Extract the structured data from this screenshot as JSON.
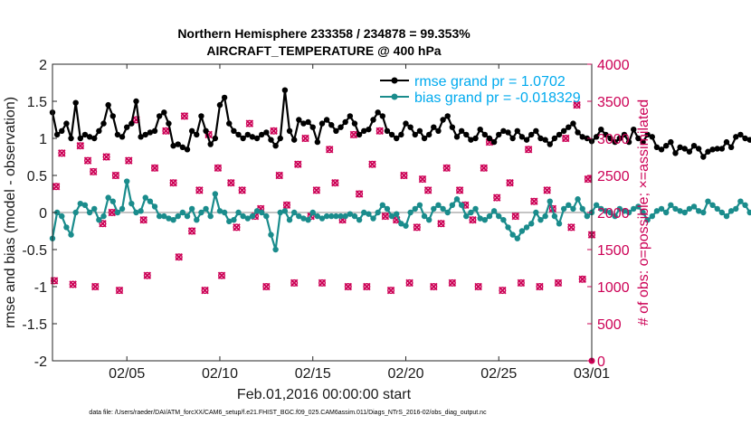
{
  "chart_data": {
    "type": "line",
    "title": "Northern Hemisphere 233358 / 234878 = 99.353%",
    "subtitle": "AIRCRAFT_TEMPERATURE @ 400 hPa",
    "xlabel": "Feb.01,2016 00:00:00 start",
    "ylabel": "rmse and bias (model - observation)",
    "ylabel_right": "# of obs: o=possible; ×=assimilated",
    "footer": "data file: /Users/raeder/DAI/ATM_forcXX/CAM6_setup/f.e21.FHIST_BGC.f09_025.CAM6assim.011/Diags_NTrS_2016-02/obs_diag_output.nc",
    "x_unit": "days since Feb.01,2016 00:00:00 (6-hourly samples)",
    "xlim": [
      1,
      30
    ],
    "ylim": [
      -2,
      2
    ],
    "ylim_right": [
      0,
      4000
    ],
    "grid": false,
    "legend_location": "top-right",
    "x_ticks": [
      5,
      10,
      15,
      20,
      25,
      30
    ],
    "x_tick_labels": [
      "02/05",
      "02/10",
      "02/15",
      "02/20",
      "02/25",
      "03/01"
    ],
    "y_ticks": [
      -2,
      -1.5,
      -1,
      -0.5,
      0,
      0.5,
      1,
      1.5,
      2
    ],
    "y_tick_labels": [
      "-2",
      "-1.5",
      "-1",
      "-0.5",
      "0",
      "0.5",
      "1",
      "1.5",
      "2"
    ],
    "y_ticks_right": [
      0,
      500,
      1000,
      1500,
      2000,
      2500,
      3000,
      3500,
      4000
    ],
    "y_tick_labels_right": [
      "0",
      "500",
      "1000",
      "1500",
      "2000",
      "2500",
      "3000",
      "3500",
      "4000"
    ],
    "colors": {
      "rmse": "#000000",
      "bias": "#1a8c8c",
      "obs": "#cc0055",
      "zero_line": "#b0b0b0",
      "legend_text": "#00aaee"
    },
    "series": [
      {
        "name": "rmse grand pr = 1.0702",
        "color": "#000000",
        "x_start": 1.0,
        "x_step": 0.25,
        "values": [
          1.35,
          1.05,
          1.1,
          1.2,
          1.0,
          1.48,
          1.0,
          1.05,
          1.02,
          1.0,
          1.1,
          1.2,
          1.45,
          1.3,
          1.05,
          1.02,
          1.15,
          1.2,
          1.5,
          1.02,
          1.05,
          1.08,
          1.1,
          1.3,
          1.35,
          1.2,
          0.9,
          0.92,
          0.88,
          0.85,
          1.1,
          1.05,
          1.3,
          1.1,
          0.92,
          1.0,
          1.45,
          1.55,
          1.2,
          1.1,
          1.05,
          1.0,
          1.05,
          1.02,
          1.0,
          1.05,
          1.08,
          0.98,
          0.9,
          1.0,
          1.65,
          1.1,
          0.98,
          1.25,
          1.2,
          1.22,
          1.15,
          0.95,
          1.2,
          1.25,
          1.18,
          1.1,
          1.15,
          1.22,
          1.3,
          1.2,
          1.05,
          1.1,
          1.12,
          1.25,
          1.35,
          1.3,
          1.1,
          1.05,
          1.0,
          1.05,
          1.2,
          1.15,
          1.05,
          1.1,
          1.0,
          1.05,
          1.15,
          1.1,
          1.25,
          1.3,
          1.15,
          1.02,
          1.1,
          1.05,
          0.98,
          1.0,
          1.12,
          1.05,
          1.0,
          0.95,
          1.05,
          1.1,
          1.08,
          1.0,
          1.1,
          1.02,
          0.98,
          1.05,
          1.1,
          1.0,
          0.98,
          0.92,
          1.0,
          1.05,
          1.1,
          1.15,
          1.2,
          1.08,
          1.02,
          1.0,
          0.96,
          1.02,
          1.12,
          1.05,
          1.0,
          0.95,
          1.0,
          1.05,
          0.95,
          1.12,
          1.0,
          0.95,
          1.05,
          1.02,
          0.88,
          0.85,
          0.9,
          0.95,
          0.8,
          0.88,
          0.86,
          0.82,
          0.9,
          0.86,
          0.75,
          0.82,
          0.85,
          0.86,
          0.86,
          0.95,
          0.88,
          1.02,
          1.05,
          1.0,
          0.98,
          1.05,
          1.0,
          0.84,
          0.82,
          0.8
        ]
      },
      {
        "name": "bias grand pr = -0.018329",
        "color": "#1a8c8c",
        "x_start": 1.0,
        "x_step": 0.25,
        "values": [
          -0.35,
          0.0,
          -0.05,
          -0.2,
          -0.3,
          0.0,
          0.12,
          0.1,
          0.0,
          0.05,
          -0.1,
          -0.05,
          0.2,
          0.15,
          0.0,
          0.05,
          0.42,
          0.12,
          0.0,
          0.02,
          0.2,
          0.15,
          0.08,
          -0.05,
          -0.05,
          -0.08,
          -0.1,
          -0.05,
          0.0,
          -0.05,
          0.05,
          -0.1,
          0.0,
          0.05,
          -0.05,
          0.25,
          0.02,
          0.0,
          -0.12,
          -0.1,
          0.0,
          -0.05,
          -0.08,
          -0.05,
          0.02,
          0.0,
          -0.05,
          -0.3,
          -0.5,
          0.0,
          0.02,
          -0.1,
          0.0,
          -0.05,
          -0.08,
          -0.1,
          0.0,
          -0.05,
          -0.08,
          -0.05,
          -0.05,
          -0.05,
          -0.05,
          -0.05,
          -0.02,
          -0.05,
          -0.1,
          0.0,
          -0.02,
          -0.08,
          0.0,
          0.1,
          0.05,
          -0.05,
          -0.02,
          -0.15,
          -0.18,
          0.0,
          0.05,
          0.1,
          -0.05,
          -0.1,
          0.05,
          0.1,
          0.05,
          0.0,
          0.1,
          0.18,
          0.1,
          -0.05,
          0.0,
          0.05,
          -0.08,
          -0.1,
          -0.05,
          0.02,
          -0.05,
          -0.1,
          -0.2,
          -0.3,
          -0.35,
          -0.25,
          -0.2,
          -0.15,
          0.0,
          -0.1,
          -0.05,
          0.15,
          -0.05,
          -0.15,
          0.05,
          0.1,
          0.05,
          0.18,
          0.05,
          -0.05,
          0.0,
          0.1,
          0.05,
          0.02,
          0.0,
          -0.05,
          0.05,
          0.02,
          0.0,
          0.05,
          0.08,
          0.0,
          -0.1,
          -0.05,
          0.02,
          0.05,
          0.0,
          0.1,
          0.05,
          0.02,
          0.0,
          0.05,
          0.08,
          0.02,
          0.0,
          0.15,
          0.1,
          0.05,
          0.0,
          -0.05,
          0.02,
          0.05,
          0.15,
          0.1,
          0.0,
          -0.05,
          0.0,
          0.05,
          0.1
        ]
      },
      {
        "name": "possible",
        "color": "#cc0055",
        "marker": "o",
        "points": [
          [
            1.1,
            1080
          ],
          [
            1.2,
            2350
          ],
          [
            1.5,
            2800
          ],
          [
            2.1,
            1030
          ],
          [
            2.5,
            2900
          ],
          [
            2.9,
            2700
          ],
          [
            3.2,
            2550
          ],
          [
            3.3,
            1000
          ],
          [
            3.7,
            1850
          ],
          [
            3.9,
            2750
          ],
          [
            4.2,
            2000
          ],
          [
            4.4,
            2500
          ],
          [
            4.6,
            950
          ],
          [
            5.1,
            2700
          ],
          [
            5.5,
            3250
          ],
          [
            5.9,
            1900
          ],
          [
            6.1,
            1150
          ],
          [
            6.5,
            2600
          ],
          [
            7.1,
            3100
          ],
          [
            7.5,
            2400
          ],
          [
            7.8,
            1400
          ],
          [
            8.1,
            3300
          ],
          [
            8.5,
            1750
          ],
          [
            8.9,
            2300
          ],
          [
            9.2,
            950
          ],
          [
            9.4,
            3050
          ],
          [
            9.9,
            2600
          ],
          [
            10.1,
            1150
          ],
          [
            10.6,
            2400
          ],
          [
            10.9,
            1800
          ],
          [
            11.2,
            2300
          ],
          [
            11.6,
            3200
          ],
          [
            11.9,
            1950
          ],
          [
            12.2,
            2050
          ],
          [
            12.5,
            1000
          ],
          [
            12.9,
            3100
          ],
          [
            13.2,
            2500
          ],
          [
            13.6,
            2100
          ],
          [
            14.0,
            1050
          ],
          [
            14.2,
            2650
          ],
          [
            14.6,
            3000
          ],
          [
            14.9,
            1950
          ],
          [
            15.2,
            2300
          ],
          [
            15.5,
            1050
          ],
          [
            15.9,
            2850
          ],
          [
            16.2,
            2400
          ],
          [
            16.6,
            1900
          ],
          [
            16.9,
            1000
          ],
          [
            17.2,
            3050
          ],
          [
            17.5,
            2250
          ],
          [
            17.9,
            1000
          ],
          [
            18.2,
            2650
          ],
          [
            18.6,
            3100
          ],
          [
            18.9,
            1950
          ],
          [
            19.2,
            950
          ],
          [
            19.5,
            1900
          ],
          [
            19.9,
            2500
          ],
          [
            20.2,
            1050
          ],
          [
            20.6,
            1800
          ],
          [
            20.9,
            2450
          ],
          [
            21.2,
            2300
          ],
          [
            21.5,
            1000
          ],
          [
            21.9,
            1850
          ],
          [
            22.2,
            2600
          ],
          [
            22.5,
            1050
          ],
          [
            22.9,
            2300
          ],
          [
            23.2,
            2100
          ],
          [
            23.6,
            1900
          ],
          [
            23.9,
            1000
          ],
          [
            24.2,
            2600
          ],
          [
            24.5,
            2950
          ],
          [
            24.9,
            2200
          ],
          [
            25.2,
            950
          ],
          [
            25.6,
            2400
          ],
          [
            25.9,
            1950
          ],
          [
            26.2,
            1050
          ],
          [
            26.6,
            2850
          ],
          [
            26.9,
            2150
          ],
          [
            27.2,
            1000
          ],
          [
            27.6,
            2300
          ],
          [
            27.9,
            2050
          ],
          [
            28.2,
            1050
          ],
          [
            28.6,
            3000
          ],
          [
            28.9,
            1800
          ],
          [
            29.2,
            3450
          ],
          [
            29.5,
            1100
          ],
          [
            29.8,
            2450
          ],
          [
            30.0,
            1700
          ]
        ]
      },
      {
        "name": "assimilated",
        "color": "#cc0055",
        "marker": "x",
        "points": [
          [
            1.1,
            1080
          ],
          [
            1.2,
            2350
          ],
          [
            1.5,
            2800
          ],
          [
            2.1,
            1030
          ],
          [
            2.5,
            2900
          ],
          [
            2.9,
            2700
          ],
          [
            3.2,
            2550
          ],
          [
            3.3,
            1000
          ],
          [
            3.7,
            1850
          ],
          [
            3.9,
            2750
          ],
          [
            4.2,
            2000
          ],
          [
            4.4,
            2500
          ],
          [
            4.6,
            950
          ],
          [
            5.1,
            2700
          ],
          [
            5.5,
            3250
          ],
          [
            5.9,
            1900
          ],
          [
            6.1,
            1150
          ],
          [
            6.5,
            2600
          ],
          [
            7.1,
            3100
          ],
          [
            7.5,
            2400
          ],
          [
            7.8,
            1400
          ],
          [
            8.1,
            3300
          ],
          [
            8.5,
            1750
          ],
          [
            8.9,
            2300
          ],
          [
            9.2,
            950
          ],
          [
            9.4,
            3050
          ],
          [
            9.9,
            2600
          ],
          [
            10.1,
            1150
          ],
          [
            10.6,
            2400
          ],
          [
            10.9,
            1800
          ],
          [
            11.2,
            2300
          ],
          [
            11.6,
            3200
          ],
          [
            11.9,
            1950
          ],
          [
            12.2,
            2050
          ],
          [
            12.5,
            1000
          ],
          [
            12.9,
            3100
          ],
          [
            13.2,
            2500
          ],
          [
            13.6,
            2100
          ],
          [
            14.0,
            1050
          ],
          [
            14.2,
            2650
          ],
          [
            14.6,
            3000
          ],
          [
            14.9,
            1950
          ],
          [
            15.2,
            2300
          ],
          [
            15.5,
            1050
          ],
          [
            15.9,
            2850
          ],
          [
            16.2,
            2400
          ],
          [
            16.6,
            1900
          ],
          [
            16.9,
            1000
          ],
          [
            17.2,
            3050
          ],
          [
            17.5,
            2250
          ],
          [
            17.9,
            1000
          ],
          [
            18.2,
            2650
          ],
          [
            18.6,
            3100
          ],
          [
            18.9,
            1950
          ],
          [
            19.2,
            950
          ],
          [
            19.5,
            1900
          ],
          [
            19.9,
            2500
          ],
          [
            20.2,
            1050
          ],
          [
            20.6,
            1800
          ],
          [
            20.9,
            2450
          ],
          [
            21.2,
            2300
          ],
          [
            21.5,
            1000
          ],
          [
            21.9,
            1850
          ],
          [
            22.2,
            2600
          ],
          [
            22.5,
            1050
          ],
          [
            22.9,
            2300
          ],
          [
            23.2,
            2100
          ],
          [
            23.6,
            1900
          ],
          [
            23.9,
            1000
          ],
          [
            24.2,
            2600
          ],
          [
            24.5,
            2950
          ],
          [
            24.9,
            2200
          ],
          [
            25.2,
            950
          ],
          [
            25.6,
            2400
          ],
          [
            25.9,
            1950
          ],
          [
            26.2,
            1050
          ],
          [
            26.6,
            2850
          ],
          [
            26.9,
            2150
          ],
          [
            27.2,
            1000
          ],
          [
            27.6,
            2300
          ],
          [
            27.9,
            2050
          ],
          [
            28.2,
            1050
          ],
          [
            28.6,
            3000
          ],
          [
            28.9,
            1800
          ],
          [
            29.2,
            3450
          ],
          [
            29.5,
            1100
          ],
          [
            29.8,
            2450
          ],
          [
            30.0,
            1700
          ]
        ]
      }
    ]
  }
}
